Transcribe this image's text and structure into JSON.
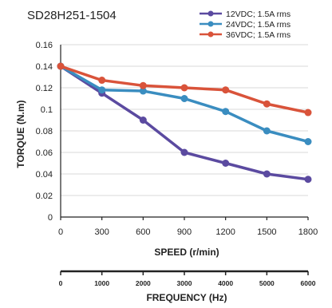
{
  "chart_data": {
    "type": "line",
    "title": "SD28H251-1504",
    "xlabel": "SPEED (r/min)",
    "ylabel": "TORQUE (N.m)",
    "x": [
      0,
      300,
      600,
      900,
      1200,
      1500,
      1800
    ],
    "x_ticks": [
      "0",
      "300",
      "600",
      "900",
      "1200",
      "1500",
      "1800"
    ],
    "y_ticks": [
      "0",
      "0.02",
      "0.04",
      "0.06",
      "0.08",
      "0.1",
      "0.12",
      "0.14",
      "0.16"
    ],
    "xlim": [
      0,
      1800
    ],
    "ylim": [
      0,
      0.16
    ],
    "grid": true,
    "legend_position": "top-right",
    "series": [
      {
        "name": "12VDC; 1.5A rms",
        "color": "#5b4aa0",
        "values": [
          0.14,
          0.115,
          0.09,
          0.06,
          0.05,
          0.04,
          0.035
        ]
      },
      {
        "name": "24VDC; 1.5A rms",
        "color": "#3a8dc0",
        "values": [
          0.14,
          0.118,
          0.117,
          0.11,
          0.098,
          0.08,
          0.07
        ]
      },
      {
        "name": "36VDC; 1.5A rms",
        "color": "#d9533a",
        "values": [
          0.14,
          0.127,
          0.122,
          0.12,
          0.118,
          0.105,
          0.097
        ]
      }
    ],
    "secondary_axis": {
      "label": "FREQUENCY (Hz)",
      "ticks": [
        "0",
        "1000",
        "2000",
        "3000",
        "4000",
        "5000",
        "6000"
      ]
    }
  }
}
